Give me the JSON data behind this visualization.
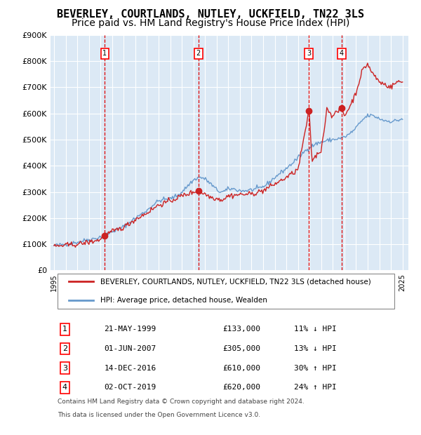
{
  "title": "BEVERLEY, COURTLANDS, NUTLEY, UCKFIELD, TN22 3LS",
  "subtitle": "Price paid vs. HM Land Registry's House Price Index (HPI)",
  "title_fontsize": 11,
  "subtitle_fontsize": 10,
  "background_color": "#ffffff",
  "plot_bg_color": "#dce9f5",
  "grid_color": "#ffffff",
  "hpi_line_color": "#6699cc",
  "price_line_color": "#cc2222",
  "sale_marker_color": "#cc2222",
  "dashed_line_color": "#dd0000",
  "ylabel": "",
  "ylim": [
    0,
    900000
  ],
  "yticks": [
    0,
    100000,
    200000,
    300000,
    400000,
    500000,
    600000,
    700000,
    800000,
    900000
  ],
  "ytick_labels": [
    "£0",
    "£100K",
    "£200K",
    "£300K",
    "£400K",
    "£500K",
    "£600K",
    "£700K",
    "£800K",
    "£900K"
  ],
  "xlim_start": 1994.7,
  "xlim_end": 2025.5,
  "xtick_years": [
    1995,
    1996,
    1997,
    1998,
    1999,
    2000,
    2001,
    2002,
    2003,
    2004,
    2005,
    2006,
    2007,
    2008,
    2009,
    2010,
    2011,
    2012,
    2013,
    2014,
    2015,
    2016,
    2017,
    2018,
    2019,
    2020,
    2021,
    2022,
    2023,
    2024,
    2025
  ],
  "legend_items": [
    {
      "label": "BEVERLEY, COURTLANDS, NUTLEY, UCKFIELD, TN22 3LS (detached house)",
      "color": "#cc2222",
      "lw": 1.5
    },
    {
      "label": "HPI: Average price, detached house, Wealden",
      "color": "#6699cc",
      "lw": 1.5
    }
  ],
  "sales": [
    {
      "num": 1,
      "date": "21-MAY-1999",
      "price": 133000,
      "pct": "11%",
      "dir": "↓",
      "year": 1999.38
    },
    {
      "num": 2,
      "date": "01-JUN-2007",
      "price": 305000,
      "pct": "13%",
      "dir": "↓",
      "year": 2007.42
    },
    {
      "num": 3,
      "date": "14-DEC-2016",
      "price": 610000,
      "pct": "30%",
      "dir": "↑",
      "year": 2016.95
    },
    {
      "num": 4,
      "date": "02-OCT-2019",
      "price": 620000,
      "pct": "24%",
      "dir": "↑",
      "year": 2019.75
    }
  ],
  "footer_lines": [
    "Contains HM Land Registry data © Crown copyright and database right 2024.",
    "This data is licensed under the Open Government Licence v3.0."
  ]
}
